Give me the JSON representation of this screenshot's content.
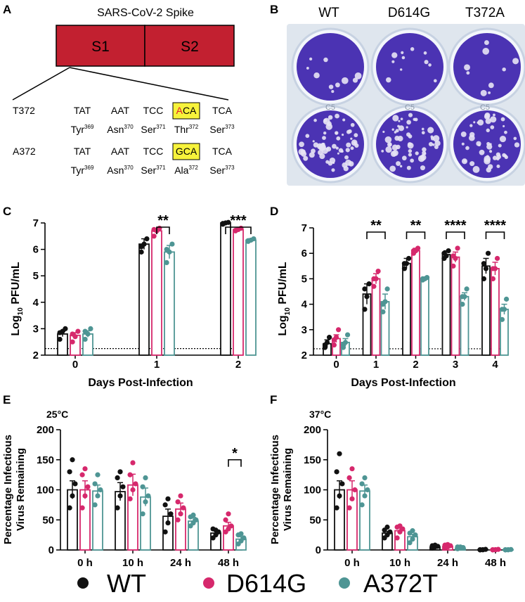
{
  "panel_labels": [
    "A",
    "B",
    "C",
    "D",
    "E",
    "F"
  ],
  "colors": {
    "wt": "#111111",
    "d614g": "#d6286c",
    "a372t": "#4e9594",
    "s1s2": "#c22030",
    "highlight": "#f7f33b",
    "mutant_letter": "#e0202a",
    "plate_bg": "#dfe6ee",
    "plaque": "#4b33b3"
  },
  "panel_a": {
    "title": "SARS-CoV-2 Spike",
    "s1": "S1",
    "s2": "S2",
    "rows": [
      {
        "label": "T372",
        "codons": [
          "TAT",
          "AAT",
          "TCC",
          "ACA",
          "TCA"
        ],
        "mutant_first": "A",
        "mutant_rest": "CA",
        "aa": [
          [
            "Tyr",
            "369"
          ],
          [
            "Asn",
            "370"
          ],
          [
            "Ser",
            "371"
          ],
          [
            "Thr",
            "372"
          ],
          [
            "Ser",
            "373"
          ]
        ]
      },
      {
        "label": "A372",
        "codons": [
          "TAT",
          "AAT",
          "TCC",
          "GCA",
          "TCA"
        ],
        "aa": [
          [
            "Tyr",
            "369"
          ],
          [
            "Asn",
            "370"
          ],
          [
            "Ser",
            "371"
          ],
          [
            "Ala",
            "372"
          ],
          [
            "Ser",
            "373"
          ]
        ]
      }
    ]
  },
  "panel_b": {
    "columns": [
      "WT",
      "D614G",
      "T372A"
    ],
    "well_marks": [
      "C5",
      "C5",
      "C5"
    ]
  },
  "legend": [
    {
      "name": "WT",
      "color": "#111111"
    },
    {
      "name": "D614G",
      "color": "#d6286c"
    },
    {
      "name": "A372T",
      "color": "#4e9594"
    }
  ],
  "chart_data": [
    {
      "panel": "C",
      "type": "bar",
      "title": "",
      "xlabel": "Days Post-Infection",
      "ylabel": "Log10 PFU/mL",
      "ylabel_main": "Log",
      "ylabel_sub": "10",
      "ylabel_rest": " PFU/mL",
      "categories": [
        "0",
        "1",
        "2"
      ],
      "ylim": [
        2,
        7
      ],
      "yticks": [
        "2",
        "3",
        "4",
        "5",
        "6",
        "7"
      ],
      "limit_of_detection": 2.25,
      "series": [
        {
          "name": "WT",
          "values": [
            2.8,
            6.2,
            7.0
          ],
          "errors": [
            0.1,
            0.2,
            0.03
          ],
          "points": [
            [
              2.6,
              2.9,
              3.0,
              2.85
            ],
            [
              5.9,
              6.2,
              6.4,
              6.1
            ],
            [
              6.95,
              7.0,
              7.02,
              6.98
            ]
          ]
        },
        {
          "name": "D614G",
          "values": [
            2.75,
            6.7,
            6.75
          ],
          "errors": [
            0.1,
            0.1,
            0.05
          ],
          "points": [
            [
              2.5,
              2.7,
              2.9,
              2.8
            ],
            [
              6.5,
              6.7,
              6.8,
              6.75
            ],
            [
              6.7,
              6.75,
              6.8,
              6.72
            ]
          ]
        },
        {
          "name": "A372T",
          "values": [
            2.8,
            5.9,
            6.35
          ],
          "errors": [
            0.12,
            0.25,
            0.05
          ],
          "points": [
            [
              2.6,
              2.8,
              3.0,
              2.9
            ],
            [
              5.5,
              5.9,
              6.2,
              6.0
            ],
            [
              6.3,
              6.35,
              6.4,
              6.33
            ]
          ]
        }
      ],
      "significance": [
        {
          "category": "1",
          "pair": [
            "D614G",
            "A372T"
          ],
          "label": "**"
        },
        {
          "category": "2",
          "pair": [
            "WT",
            "A372T"
          ],
          "label": "***"
        }
      ]
    },
    {
      "panel": "D",
      "type": "bar",
      "title": "",
      "xlabel": "Days Post-Infection",
      "ylabel": "Log10 PFU/mL",
      "ylabel_main": "Log",
      "ylabel_sub": "10",
      "ylabel_rest": " PFU/mL",
      "categories": [
        "0",
        "1",
        "2",
        "3",
        "4"
      ],
      "ylim": [
        2,
        7
      ],
      "yticks": [
        "2",
        "3",
        "4",
        "5",
        "6",
        "7"
      ],
      "limit_of_detection": 2.25,
      "series": [
        {
          "name": "WT",
          "values": [
            2.45,
            4.4,
            5.6,
            5.95,
            5.5
          ],
          "errors": [
            0.15,
            0.4,
            0.2,
            0.15,
            0.3
          ],
          "points": [
            [
              2.3,
              2.5,
              2.7,
              2.4
            ],
            [
              3.8,
              4.3,
              4.8,
              4.6
            ],
            [
              5.4,
              5.6,
              5.8,
              5.6
            ],
            [
              5.8,
              5.9,
              6.1,
              6.0
            ],
            [
              5.0,
              5.4,
              6.0,
              5.6
            ]
          ]
        },
        {
          "name": "D614G",
          "values": [
            2.65,
            5.0,
            6.1,
            5.85,
            5.4
          ],
          "errors": [
            0.15,
            0.2,
            0.1,
            0.2,
            0.25
          ],
          "points": [
            [
              2.4,
              2.7,
              3.0,
              2.6
            ],
            [
              4.7,
              5.0,
              5.3,
              5.0
            ],
            [
              6.0,
              6.1,
              6.2,
              6.1
            ],
            [
              5.5,
              5.8,
              6.2,
              5.9
            ],
            [
              5.0,
              5.4,
              5.8,
              5.4
            ]
          ]
        },
        {
          "name": "A372T",
          "values": [
            2.5,
            4.1,
            5.0,
            4.3,
            3.8
          ],
          "errors": [
            0.15,
            0.3,
            0.05,
            0.15,
            0.2
          ],
          "points": [
            [
              2.3,
              2.5,
              2.8,
              2.4
            ],
            [
              3.7,
              4.1,
              4.6,
              4.0
            ],
            [
              4.95,
              5.0,
              5.05,
              5.0
            ],
            [
              4.0,
              4.3,
              4.6,
              4.3
            ],
            [
              3.4,
              3.8,
              4.2,
              3.8
            ]
          ]
        }
      ],
      "significance": [
        {
          "category": "1",
          "pair": [
            "WT",
            "A372T"
          ],
          "label": "**"
        },
        {
          "category": "2",
          "pair": [
            "WT",
            "A372T"
          ],
          "label": "**"
        },
        {
          "category": "3",
          "pair": [
            "WT",
            "A372T"
          ],
          "label": "****"
        },
        {
          "category": "4",
          "pair": [
            "WT",
            "A372T"
          ],
          "label": "****"
        }
      ]
    },
    {
      "panel": "E",
      "type": "bar",
      "title": "25°C",
      "xlabel": "",
      "ylabel": "Percentage Infectious Virus Remaining",
      "ylabel_line1": "Percentage Infectious",
      "ylabel_line2": "Virus Remaining",
      "categories": [
        "0 h",
        "10 h",
        "24 h",
        "48 h"
      ],
      "ylim": [
        0,
        200
      ],
      "yticks": [
        "0",
        "50",
        "100",
        "150",
        "200"
      ],
      "series": [
        {
          "name": "WT",
          "values": [
            100,
            97,
            56,
            28
          ],
          "errors": [
            15,
            15,
            12,
            5
          ],
          "points": [
            [
              70,
              90,
              110,
              130,
              150
            ],
            [
              70,
              90,
              105,
              120,
              130
            ],
            [
              30,
              45,
              60,
              75,
              85
            ],
            [
              20,
              25,
              30,
              35,
              33
            ]
          ]
        },
        {
          "name": "D614G",
          "values": [
            100,
            108,
            68,
            40
          ],
          "errors": [
            15,
            18,
            10,
            6
          ],
          "points": [
            [
              70,
              90,
              105,
              125,
              135
            ],
            [
              85,
              100,
              110,
              125,
              145
            ],
            [
              50,
              60,
              70,
              80,
              90
            ],
            [
              30,
              35,
              40,
              50,
              60
            ]
          ]
        },
        {
          "name": "A372T",
          "values": [
            98,
            88,
            48,
            18
          ],
          "errors": [
            10,
            15,
            6,
            4
          ],
          "points": [
            [
              75,
              90,
              100,
              110,
              125
            ],
            [
              60,
              80,
              90,
              105,
              120
            ],
            [
              40,
              45,
              50,
              55,
              58
            ],
            [
              10,
              15,
              20,
              25,
              27
            ]
          ]
        }
      ],
      "significance": [
        {
          "category": "48 h",
          "pair": [
            "D614G",
            "A372T"
          ],
          "label": "*"
        }
      ]
    },
    {
      "panel": "F",
      "type": "bar",
      "title": "37°C",
      "xlabel": "",
      "ylabel": "Percentage Infectious Virus Remaining",
      "ylabel_line1": "Percentage Infectious",
      "ylabel_line2": "Virus Remaining",
      "categories": [
        "0 h",
        "10 h",
        "24 h",
        "48 h"
      ],
      "ylim": [
        0,
        200
      ],
      "yticks": [
        "0",
        "50",
        "100",
        "150",
        "200"
      ],
      "series": [
        {
          "name": "WT",
          "values": [
            100,
            28,
            5,
            0.5
          ],
          "errors": [
            15,
            3,
            1,
            0.2
          ],
          "points": [
            [
              70,
              90,
              110,
              130,
              160
            ],
            [
              20,
              25,
              30,
              33,
              38
            ],
            [
              3,
              5,
              6,
              7,
              8
            ],
            [
              0,
              0.5,
              1,
              0.5,
              0.2
            ]
          ]
        },
        {
          "name": "D614G",
          "values": [
            100,
            32,
            6,
            0.5
          ],
          "errors": [
            15,
            5,
            1,
            0.2
          ],
          "points": [
            [
              70,
              85,
              100,
              120,
              135
            ],
            [
              20,
              30,
              35,
              38,
              40
            ],
            [
              3,
              5,
              7,
              8,
              9
            ],
            [
              0,
              0.5,
              1,
              0.5,
              0.3
            ]
          ]
        },
        {
          "name": "A372T",
          "values": [
            98,
            22,
            3,
            0.5
          ],
          "errors": [
            10,
            4,
            1,
            0.2
          ],
          "points": [
            [
              75,
              90,
              100,
              110,
              120
            ],
            [
              12,
              18,
              25,
              28,
              32
            ],
            [
              2,
              3,
              4,
              5,
              5
            ],
            [
              0,
              0.4,
              0.8,
              0.5,
              0.2
            ]
          ]
        }
      ],
      "significance": []
    }
  ]
}
